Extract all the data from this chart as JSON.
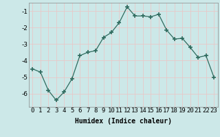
{
  "xlabel": "Humidex (Indice chaleur)",
  "ylabel": "",
  "x": [
    0,
    1,
    2,
    3,
    4,
    5,
    6,
    7,
    8,
    9,
    10,
    11,
    12,
    13,
    14,
    15,
    16,
    17,
    18,
    19,
    20,
    21,
    22,
    23
  ],
  "y": [
    -4.5,
    -4.7,
    -5.8,
    -6.4,
    -5.9,
    -5.1,
    -3.7,
    -3.5,
    -3.4,
    -2.6,
    -2.3,
    -1.7,
    -0.75,
    -1.3,
    -1.3,
    -1.35,
    -1.2,
    -2.15,
    -2.7,
    -2.65,
    -3.2,
    -3.8,
    -3.7,
    -5.0
  ],
  "line_color": "#2e6b5e",
  "marker": "+",
  "marker_size": 4,
  "marker_lw": 1.2,
  "bg_color": "#cce8e8",
  "grid_color": "#e8c8c8",
  "ylim": [
    -6.8,
    -0.5
  ],
  "xlim": [
    -0.5,
    23.5
  ],
  "yticks": [
    -6,
    -5,
    -4,
    -3,
    -2,
    -1
  ],
  "xticks": [
    0,
    1,
    2,
    3,
    4,
    5,
    6,
    7,
    8,
    9,
    10,
    11,
    12,
    13,
    14,
    15,
    16,
    17,
    18,
    19,
    20,
    21,
    22,
    23
  ],
  "label_fontsize": 7,
  "tick_fontsize": 6.5
}
